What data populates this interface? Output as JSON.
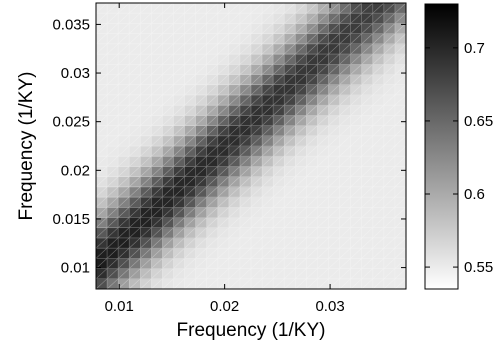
{
  "chart_data": {
    "type": "heatmap",
    "title": "",
    "xlabel": "Frequency (1/KY)",
    "ylabel": "Frequency (1/KY)",
    "xlim": [
      0.0078,
      0.0372
    ],
    "ylim": [
      0.0078,
      0.0372
    ],
    "x_ticks": [
      0.01,
      0.02,
      0.03
    ],
    "x_tick_labels": [
      "0.01",
      "0.02",
      "0.03"
    ],
    "y_ticks": [
      0.01,
      0.015,
      0.02,
      0.025,
      0.03,
      0.035
    ],
    "y_tick_labels": [
      "0.01",
      "0.015",
      "0.02",
      "0.025",
      "0.03",
      "0.035"
    ],
    "grid_cells": 28,
    "colormap": "gray (white = low, black = high)",
    "colorbar": {
      "min": 0.535,
      "max": 0.73,
      "ticks": [
        0.55,
        0.6,
        0.65,
        0.7
      ],
      "tick_labels": [
        "0.55",
        "0.6",
        "0.65",
        "0.7"
      ]
    },
    "pattern": {
      "description_values": "band along diagonal y = x + offset",
      "band_offset": 0.0025,
      "band_value_low_freq": 0.71,
      "band_value_high_freq": 0.68,
      "background_value": 0.55
    },
    "grid": true
  }
}
